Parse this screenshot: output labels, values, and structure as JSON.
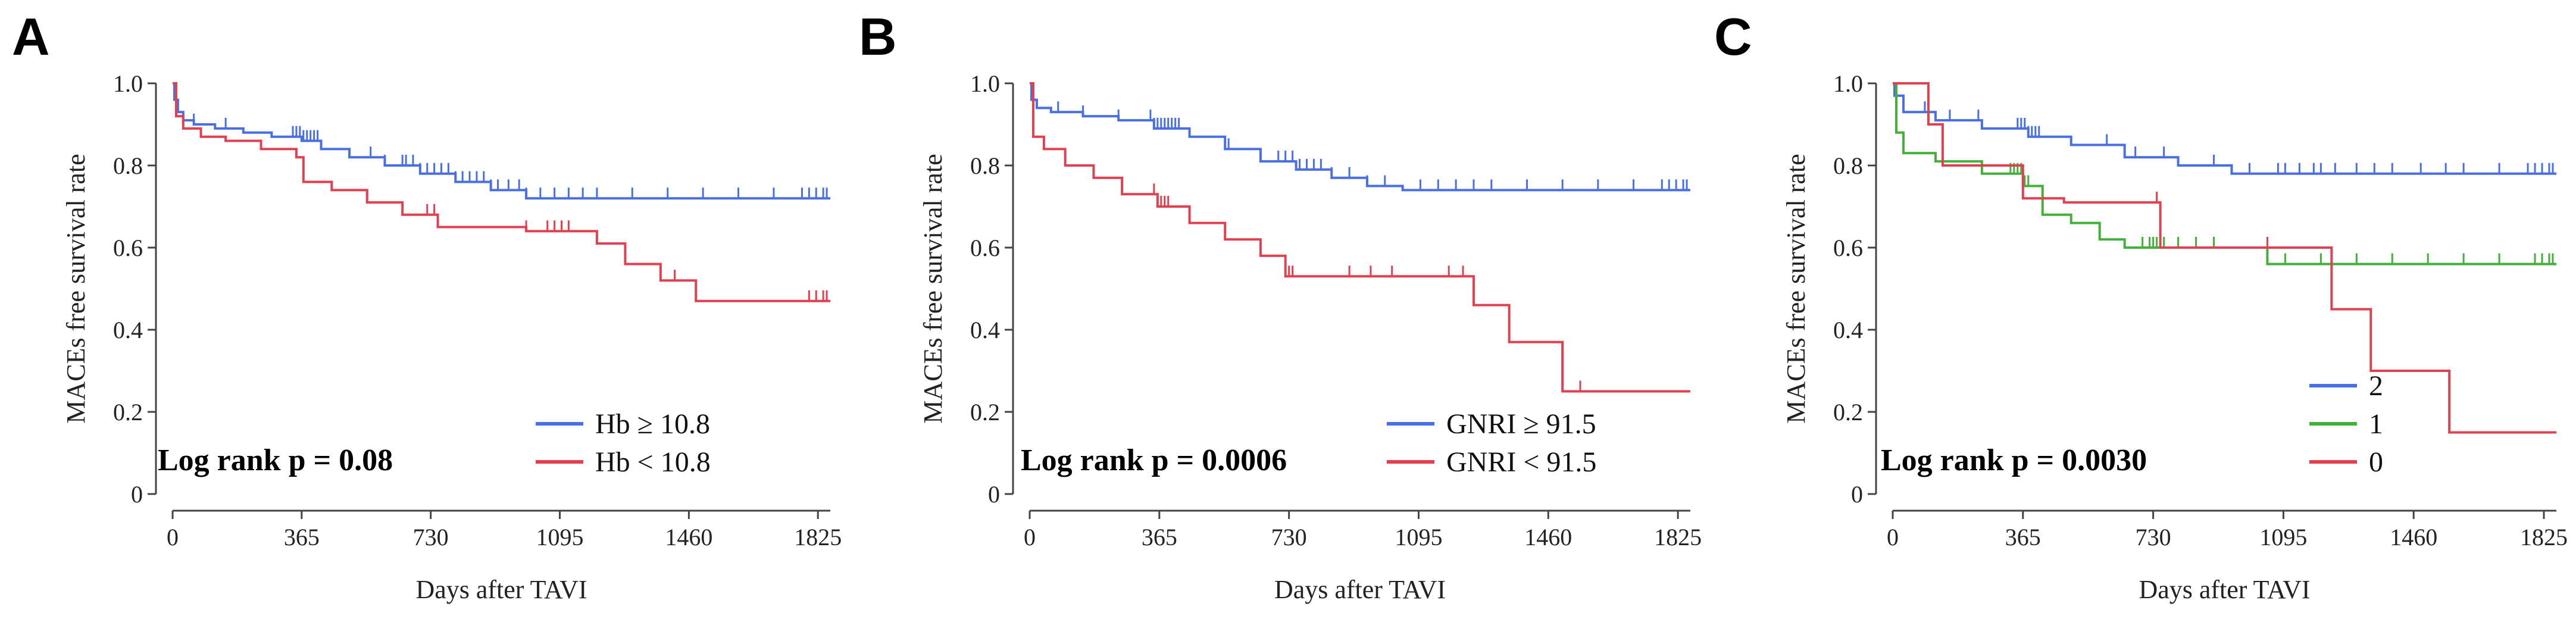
{
  "chart_data": [
    {
      "panel": "A",
      "type": "line",
      "title": "",
      "xlabel": "Days after TAVI",
      "ylabel": "MACEs free survival rate",
      "xlim": [
        0,
        1860
      ],
      "ylim": [
        0,
        1.0
      ],
      "x_ticks": [
        0,
        365,
        730,
        1095,
        1460,
        1825
      ],
      "y_ticks": [
        0,
        0.2,
        0.4,
        0.6,
        0.8,
        1.0
      ],
      "y_tick_labels": [
        "0",
        "0.2",
        "0.4",
        "0.6",
        "0.8",
        "1.0"
      ],
      "annotation": "Log rank p = 0.08",
      "legend_position": "bottom-right",
      "series": [
        {
          "name": "Hb ≥ 10.8",
          "color": "#4a6fe3",
          "step_x": [
            0,
            5,
            15,
            30,
            60,
            120,
            200,
            280,
            365,
            420,
            500,
            600,
            700,
            800,
            900,
            1000,
            1860
          ],
          "step_y": [
            1.0,
            0.96,
            0.93,
            0.91,
            0.9,
            0.89,
            0.88,
            0.87,
            0.86,
            0.84,
            0.82,
            0.8,
            0.78,
            0.76,
            0.74,
            0.72,
            0.72
          ],
          "censor_x": [
            60,
            150,
            340,
            350,
            360,
            370,
            380,
            390,
            400,
            410,
            560,
            600,
            650,
            660,
            680,
            700,
            720,
            740,
            760,
            780,
            800,
            820,
            840,
            860,
            880,
            900,
            920,
            950,
            980,
            1000,
            1040,
            1080,
            1120,
            1160,
            1200,
            1300,
            1400,
            1500,
            1600,
            1700,
            1780,
            1800,
            1820,
            1840,
            1850
          ]
        },
        {
          "name": "Hb < 10.8",
          "color": "#e04050",
          "step_x": [
            0,
            10,
            30,
            80,
            150,
            250,
            350,
            370,
            450,
            550,
            650,
            750,
            1000,
            1200,
            1280,
            1380,
            1480,
            1860
          ],
          "step_y": [
            1.0,
            0.92,
            0.89,
            0.87,
            0.86,
            0.84,
            0.82,
            0.76,
            0.74,
            0.71,
            0.68,
            0.65,
            0.64,
            0.61,
            0.56,
            0.52,
            0.47,
            0.47
          ],
          "censor_x": [
            720,
            740,
            1000,
            1060,
            1080,
            1100,
            1120,
            1380,
            1420,
            1800,
            1820,
            1840,
            1850
          ]
        }
      ]
    },
    {
      "panel": "B",
      "type": "line",
      "title": "",
      "xlabel": "Days after TAVI",
      "ylabel": "MACEs free survival rate",
      "xlim": [
        0,
        1860
      ],
      "ylim": [
        0,
        1.0
      ],
      "x_ticks": [
        0,
        365,
        730,
        1095,
        1460,
        1825
      ],
      "y_ticks": [
        0,
        0.2,
        0.4,
        0.6,
        0.8,
        1.0
      ],
      "y_tick_labels": [
        "0",
        "0.2",
        "0.4",
        "0.6",
        "0.8",
        "1.0"
      ],
      "annotation": "Log rank p = 0.0006",
      "legend_position": "bottom-right",
      "series": [
        {
          "name": "GNRI ≥ 91.5",
          "color": "#4a6fe3",
          "step_x": [
            0,
            5,
            20,
            60,
            150,
            250,
            350,
            450,
            550,
            650,
            750,
            850,
            950,
            1050,
            1860
          ],
          "step_y": [
            1.0,
            0.96,
            0.94,
            0.93,
            0.92,
            0.91,
            0.89,
            0.87,
            0.84,
            0.81,
            0.79,
            0.77,
            0.75,
            0.74,
            0.74
          ],
          "censor_x": [
            80,
            150,
            250,
            340,
            350,
            360,
            370,
            380,
            390,
            400,
            410,
            420,
            560,
            650,
            700,
            720,
            740,
            760,
            780,
            800,
            820,
            850,
            900,
            950,
            1000,
            1100,
            1150,
            1200,
            1250,
            1300,
            1400,
            1500,
            1600,
            1700,
            1780,
            1800,
            1820,
            1840,
            1850
          ]
        },
        {
          "name": "GNRI < 91.5",
          "color": "#e04050",
          "step_x": [
            0,
            10,
            40,
            100,
            180,
            260,
            360,
            450,
            550,
            650,
            720,
            1250,
            1350,
            1500,
            1860
          ],
          "step_y": [
            1.0,
            0.87,
            0.84,
            0.8,
            0.77,
            0.73,
            0.7,
            0.66,
            0.62,
            0.58,
            0.53,
            0.46,
            0.37,
            0.25,
            0.25
          ],
          "censor_x": [
            350,
            370,
            380,
            390,
            720,
            730,
            740,
            900,
            960,
            1020,
            1180,
            1220,
            1250,
            1550
          ]
        }
      ]
    },
    {
      "panel": "C",
      "type": "line",
      "title": "",
      "xlabel": "Days after TAVI",
      "ylabel": "MACEs free survival rate",
      "xlim": [
        0,
        1860
      ],
      "ylim": [
        0,
        1.0
      ],
      "x_ticks": [
        0,
        365,
        730,
        1095,
        1460,
        1825
      ],
      "y_ticks": [
        0,
        0.2,
        0.4,
        0.6,
        0.8,
        1.0
      ],
      "y_tick_labels": [
        "0",
        "0.2",
        "0.4",
        "0.6",
        "0.8",
        "1.0"
      ],
      "annotation": "Log rank p = 0.0030",
      "legend_position": "bottom-right",
      "series": [
        {
          "name": "2",
          "color": "#4a6fe3",
          "step_x": [
            0,
            5,
            30,
            120,
            250,
            380,
            500,
            650,
            800,
            950,
            1860
          ],
          "step_y": [
            1.0,
            0.97,
            0.93,
            0.91,
            0.89,
            0.87,
            0.85,
            0.82,
            0.8,
            0.78,
            0.78
          ],
          "censor_x": [
            90,
            160,
            240,
            350,
            360,
            370,
            380,
            390,
            400,
            410,
            600,
            680,
            760,
            900,
            1000,
            1080,
            1100,
            1140,
            1180,
            1200,
            1240,
            1300,
            1350,
            1400,
            1480,
            1550,
            1600,
            1700,
            1780,
            1800,
            1820,
            1840,
            1850
          ]
        },
        {
          "name": "1",
          "color": "#44b03c",
          "step_x": [
            0,
            10,
            30,
            120,
            250,
            365,
            420,
            500,
            580,
            650,
            1050,
            1860
          ],
          "step_y": [
            1.0,
            0.88,
            0.83,
            0.81,
            0.78,
            0.75,
            0.68,
            0.66,
            0.62,
            0.6,
            0.56,
            0.56
          ],
          "censor_x": [
            330,
            340,
            350,
            360,
            370,
            380,
            700,
            720,
            730,
            740,
            760,
            800,
            850,
            900,
            1050,
            1100,
            1200,
            1300,
            1400,
            1500,
            1600,
            1700,
            1800,
            1820,
            1840,
            1850
          ]
        },
        {
          "name": "0",
          "color": "#e04050",
          "step_x": [
            0,
            100,
            140,
            365,
            480,
            750,
            1230,
            1340,
            1560,
            1860
          ],
          "step_y": [
            1.0,
            0.9,
            0.8,
            0.72,
            0.71,
            0.6,
            0.45,
            0.3,
            0.15,
            0.15
          ],
          "censor_x": [
            740,
            1050
          ]
        }
      ]
    }
  ]
}
